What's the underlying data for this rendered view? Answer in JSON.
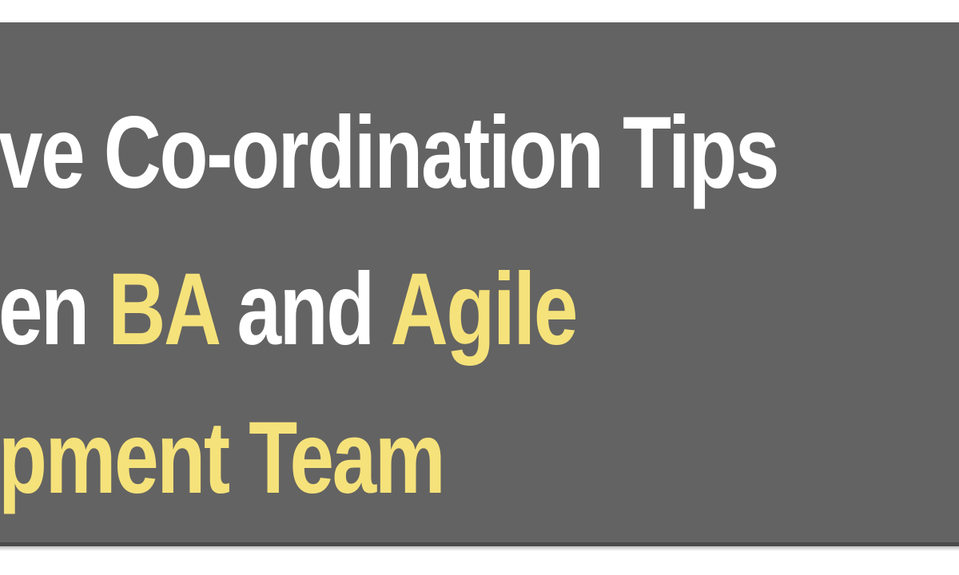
{
  "banner": {
    "line1": "ve Co-ordination Tips",
    "line2_pre": "en ",
    "line2_hl1": "BA",
    "line2_mid": " and ",
    "line2_hl2": "Agile",
    "line3_hl": "pment Team"
  },
  "colors": {
    "background": "#636363",
    "text": "#ffffff",
    "highlight": "#f6e27a"
  }
}
